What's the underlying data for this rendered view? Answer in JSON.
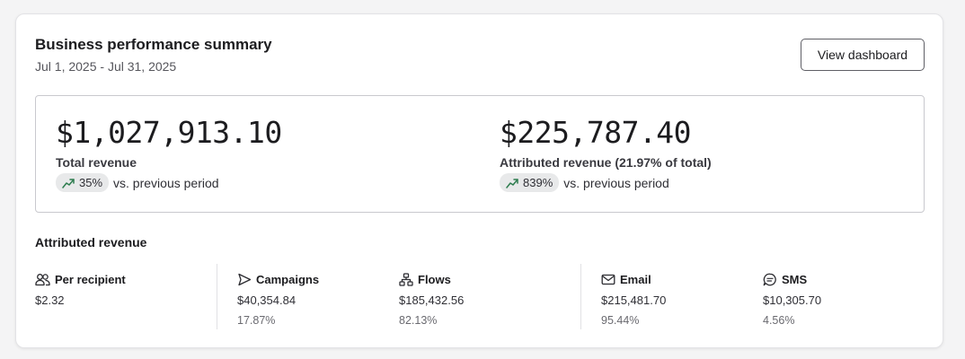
{
  "header": {
    "title": "Business performance summary",
    "date_range": "Jul 1, 2025 - Jul 31, 2025",
    "view_dashboard_label": "View dashboard"
  },
  "summary": {
    "total": {
      "value": "$1,027,913.10",
      "label": "Total revenue",
      "change": "35%",
      "compare_text": "vs. previous period",
      "trend_icon": "trend-up-icon"
    },
    "attributed": {
      "value": "$225,787.40",
      "label": "Attributed revenue (21.97% of total)",
      "change": "839%",
      "compare_text": "vs. previous period",
      "trend_icon": "trend-up-icon"
    }
  },
  "attributed_section": {
    "title": "Attributed revenue",
    "stats": [
      {
        "label": "Per recipient",
        "icon": "users-icon",
        "value": "$2.32",
        "percent": ""
      },
      {
        "label": "Campaigns",
        "icon": "send-icon",
        "value": "$40,354.84",
        "percent": "17.87%"
      },
      {
        "label": "Flows",
        "icon": "flow-icon",
        "value": "$185,432.56",
        "percent": "82.13%"
      },
      {
        "label": "Email",
        "icon": "mail-icon",
        "value": "$215,481.70",
        "percent": "95.44%"
      },
      {
        "label": "SMS",
        "icon": "sms-icon",
        "value": "$10,305.70",
        "percent": "4.56%"
      }
    ]
  },
  "colors": {
    "trend_up": "#2e7d4f",
    "pill_bg": "#e8e9ea",
    "card_border": "#e3e3e6"
  }
}
